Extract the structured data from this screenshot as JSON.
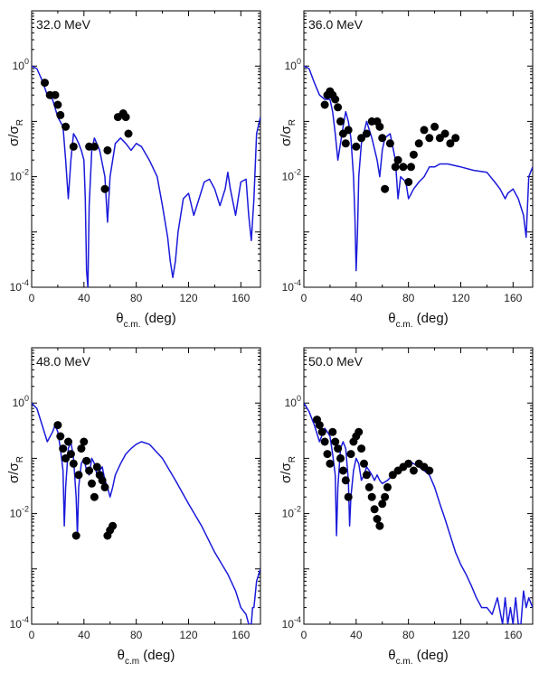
{
  "chart_data": [
    {
      "type": "line",
      "title": "32.0 MeV",
      "xlabel": "θ",
      "xlabel_sub": "c.m.",
      "xlabel_unit": " (deg)",
      "ylabel": "σ/σ",
      "ylabel_sub": "R",
      "xlim": [
        0,
        175
      ],
      "ylim_log10": [
        -4,
        1
      ],
      "xticks": [
        0,
        40,
        80,
        120,
        160
      ],
      "yticks": [
        {
          "exp": 0,
          "label": "10",
          "sup": "0"
        },
        {
          "exp": -2,
          "label": "10",
          "sup": "-2"
        },
        {
          "exp": -4,
          "label": "10",
          "sup": "-4"
        }
      ],
      "line_color": "#1a1adb",
      "series": [
        {
          "kind": "calc",
          "x": [
            0,
            4,
            8,
            12,
            16,
            20,
            24,
            26,
            28,
            30,
            32,
            34,
            36,
            38,
            40,
            41,
            42,
            43,
            44,
            46,
            48,
            52,
            56,
            58,
            60,
            64,
            68,
            72,
            76,
            80,
            84,
            90,
            96,
            100,
            104,
            106,
            108,
            110,
            112,
            116,
            120,
            124,
            128,
            132,
            136,
            140,
            144,
            148,
            150,
            152,
            156,
            160,
            164,
            166,
            168,
            170,
            172,
            175
          ],
          "y": [
            1.0,
            0.9,
            0.55,
            0.3,
            0.25,
            0.12,
            0.08,
            0.02,
            0.004,
            0.02,
            0.06,
            0.05,
            0.04,
            0.03,
            0.02,
            0.004,
            0.0002,
            0.0001,
            0.003,
            0.03,
            0.05,
            0.03,
            0.01,
            0.0015,
            0.01,
            0.04,
            0.05,
            0.04,
            0.03,
            0.04,
            0.035,
            0.02,
            0.01,
            0.003,
            0.0008,
            0.0003,
            0.00015,
            0.0003,
            0.001,
            0.004,
            0.005,
            0.002,
            0.004,
            0.008,
            0.009,
            0.006,
            0.003,
            0.006,
            0.012,
            0.006,
            0.002,
            0.008,
            0.009,
            0.002,
            0.0007,
            0.004,
            0.06,
            0.12
          ]
        },
        {
          "kind": "exp",
          "x": [
            10,
            14,
            18,
            20,
            22,
            26,
            32,
            44,
            48,
            56,
            58,
            66,
            70,
            72,
            74
          ],
          "y": [
            0.5,
            0.3,
            0.3,
            0.2,
            0.13,
            0.08,
            0.035,
            0.035,
            0.035,
            0.006,
            0.03,
            0.12,
            0.14,
            0.12,
            0.06
          ]
        }
      ]
    },
    {
      "type": "line",
      "title": "36.0 MeV",
      "xlabel": "θ",
      "xlabel_sub": "c.m.",
      "xlabel_unit": " (deg)",
      "ylabel": "σ/σ",
      "ylabel_sub": "R",
      "xlim": [
        0,
        175
      ],
      "ylim_log10": [
        -4,
        1
      ],
      "xticks": [
        0,
        40,
        80,
        120,
        160
      ],
      "yticks": [
        {
          "exp": 0,
          "label": "10",
          "sup": "0"
        },
        {
          "exp": -2,
          "label": "10",
          "sup": "-2"
        },
        {
          "exp": -4,
          "label": "10",
          "sup": "-4"
        }
      ],
      "line_color": "#1a1adb",
      "series": [
        {
          "kind": "calc",
          "x": [
            0,
            4,
            8,
            12,
            16,
            20,
            22,
            24,
            26,
            28,
            30,
            32,
            34,
            36,
            38,
            39,
            40,
            41,
            42,
            44,
            48,
            52,
            56,
            58,
            60,
            62,
            66,
            70,
            72,
            74,
            78,
            80,
            84,
            88,
            92,
            96,
            100,
            104,
            110,
            120,
            130,
            140,
            146,
            150,
            154,
            156,
            160,
            164,
            168,
            170,
            172,
            175
          ],
          "y": [
            1.0,
            0.9,
            0.5,
            0.3,
            0.25,
            0.25,
            0.15,
            0.06,
            0.02,
            0.04,
            0.08,
            0.15,
            0.1,
            0.05,
            0.01,
            0.002,
            0.0002,
            0.001,
            0.01,
            0.04,
            0.1,
            0.05,
            0.02,
            0.01,
            0.03,
            0.05,
            0.06,
            0.02,
            0.004,
            0.01,
            0.008,
            0.004,
            0.006,
            0.008,
            0.01,
            0.015,
            0.015,
            0.017,
            0.017,
            0.015,
            0.013,
            0.012,
            0.008,
            0.006,
            0.004,
            0.005,
            0.006,
            0.004,
            0.002,
            0.0008,
            0.01,
            0.015
          ]
        },
        {
          "kind": "exp",
          "x": [
            16,
            18,
            20,
            22,
            24,
            26,
            28,
            30,
            32,
            34,
            40,
            44,
            48,
            52,
            56,
            58,
            60,
            62,
            66,
            70,
            72,
            76,
            80,
            82,
            84,
            88,
            92,
            96,
            100,
            104,
            108,
            112,
            116
          ],
          "y": [
            0.2,
            0.3,
            0.35,
            0.3,
            0.25,
            0.18,
            0.1,
            0.06,
            0.04,
            0.07,
            0.035,
            0.05,
            0.06,
            0.1,
            0.1,
            0.08,
            0.05,
            0.006,
            0.04,
            0.015,
            0.02,
            0.015,
            0.008,
            0.015,
            0.025,
            0.04,
            0.07,
            0.05,
            0.08,
            0.05,
            0.06,
            0.04,
            0.05
          ]
        }
      ]
    },
    {
      "type": "line",
      "title": "48.0 MeV",
      "xlabel": "θ",
      "xlabel_sub": "c.m",
      "xlabel_unit": " (deg)",
      "ylabel": "σ/σ",
      "ylabel_sub": "R",
      "xlim": [
        0,
        175
      ],
      "ylim_log10": [
        -4,
        1
      ],
      "xticks": [
        0,
        40,
        80,
        120,
        160
      ],
      "yticks": [
        {
          "exp": 0,
          "label": "10",
          "sup": "0"
        },
        {
          "exp": -2,
          "label": "10",
          "sup": "-2"
        },
        {
          "exp": -4,
          "label": "10",
          "sup": "-4"
        }
      ],
      "line_color": "#1a1adb",
      "series": [
        {
          "kind": "calc",
          "x": [
            0,
            4,
            8,
            12,
            16,
            18,
            20,
            22,
            24,
            25,
            26,
            28,
            30,
            32,
            34,
            35,
            36,
            38,
            40,
            42,
            44,
            46,
            48,
            50,
            52,
            54,
            56,
            58,
            60,
            62,
            64,
            68,
            72,
            76,
            80,
            84,
            90,
            100,
            110,
            120,
            130,
            140,
            150,
            156,
            160,
            164,
            166,
            168,
            169,
            170,
            172,
            175
          ],
          "y": [
            1.0,
            0.8,
            0.4,
            0.2,
            0.3,
            0.4,
            0.3,
            0.15,
            0.06,
            0.006,
            0.03,
            0.15,
            0.2,
            0.1,
            0.02,
            0.004,
            0.03,
            0.08,
            0.1,
            0.06,
            0.05,
            0.1,
            0.08,
            0.05,
            0.06,
            0.07,
            0.04,
            0.03,
            0.02,
            0.03,
            0.05,
            0.08,
            0.12,
            0.15,
            0.18,
            0.2,
            0.18,
            0.1,
            0.04,
            0.015,
            0.006,
            0.002,
            0.0008,
            0.0004,
            0.0002,
            0.00015,
            8e-05,
            4e-05,
            0.0002,
            0.0002,
            0.0006,
            0.001
          ]
        },
        {
          "kind": "exp",
          "x": [
            20,
            22,
            24,
            26,
            28,
            30,
            32,
            34,
            36,
            38,
            40,
            42,
            44,
            46,
            48,
            50,
            52,
            54,
            56,
            58,
            60,
            62
          ],
          "y": [
            0.4,
            0.25,
            0.15,
            0.1,
            0.2,
            0.12,
            0.08,
            0.004,
            0.05,
            0.15,
            0.2,
            0.09,
            0.06,
            0.035,
            0.02,
            0.07,
            0.05,
            0.04,
            0.03,
            0.004,
            0.005,
            0.006
          ]
        }
      ]
    },
    {
      "type": "line",
      "title": "50.0 MeV",
      "xlabel": "θ",
      "xlabel_sub": "c.m.",
      "xlabel_unit": " (deg)",
      "ylabel": "σ/σ",
      "ylabel_sub": "R",
      "xlim": [
        0,
        175
      ],
      "ylim_log10": [
        -4,
        1
      ],
      "xticks": [
        0,
        40,
        80,
        120,
        160
      ],
      "yticks": [
        {
          "exp": 0,
          "label": "10",
          "sup": "0"
        },
        {
          "exp": -2,
          "label": "10",
          "sup": "-2"
        },
        {
          "exp": -4,
          "label": "10",
          "sup": "-4"
        }
      ],
      "line_color": "#1a1adb",
      "series": [
        {
          "kind": "calc",
          "x": [
            0,
            4,
            8,
            12,
            16,
            18,
            20,
            22,
            24,
            25,
            26,
            28,
            30,
            32,
            34,
            35,
            36,
            38,
            40,
            42,
            44,
            46,
            48,
            50,
            52,
            54,
            56,
            58,
            60,
            64,
            68,
            72,
            76,
            80,
            84,
            88,
            92,
            96,
            100,
            104,
            108,
            112,
            116,
            120,
            124,
            128,
            132,
            136,
            140,
            144,
            148,
            152,
            154,
            156,
            158,
            160,
            162,
            164,
            166,
            168,
            170,
            172,
            175
          ],
          "y": [
            1.0,
            0.7,
            0.4,
            0.2,
            0.35,
            0.3,
            0.25,
            0.12,
            0.05,
            0.004,
            0.03,
            0.15,
            0.2,
            0.15,
            0.04,
            0.006,
            0.02,
            0.06,
            0.1,
            0.08,
            0.04,
            0.05,
            0.07,
            0.06,
            0.05,
            0.04,
            0.05,
            0.04,
            0.035,
            0.04,
            0.05,
            0.06,
            0.07,
            0.09,
            0.08,
            0.07,
            0.06,
            0.05,
            0.03,
            0.015,
            0.008,
            0.004,
            0.002,
            0.0012,
            0.0008,
            0.0005,
            0.0003,
            0.0002,
            0.0002,
            0.00015,
            0.0003,
            0.0001,
            0.0003,
            8e-05,
            0.0002,
            6e-05,
            0.0003,
            0.0001,
            5e-05,
            0.0004,
            0.0002,
            0.0003,
            0.0002
          ]
        },
        {
          "kind": "exp",
          "x": [
            10,
            12,
            14,
            16,
            18,
            20,
            22,
            24,
            26,
            28,
            30,
            32,
            34,
            36,
            38,
            40,
            42,
            44,
            46,
            48,
            50,
            52,
            54,
            56,
            58,
            60,
            62,
            64,
            68,
            72,
            76,
            80,
            84,
            88,
            92,
            96
          ],
          "y": [
            0.5,
            0.4,
            0.3,
            0.2,
            0.12,
            0.08,
            0.3,
            0.2,
            0.15,
            0.1,
            0.06,
            0.04,
            0.02,
            0.12,
            0.2,
            0.25,
            0.3,
            0.15,
            0.08,
            0.05,
            0.03,
            0.02,
            0.012,
            0.008,
            0.006,
            0.015,
            0.02,
            0.03,
            0.05,
            0.06,
            0.07,
            0.08,
            0.06,
            0.08,
            0.07,
            0.06
          ]
        }
      ]
    }
  ]
}
